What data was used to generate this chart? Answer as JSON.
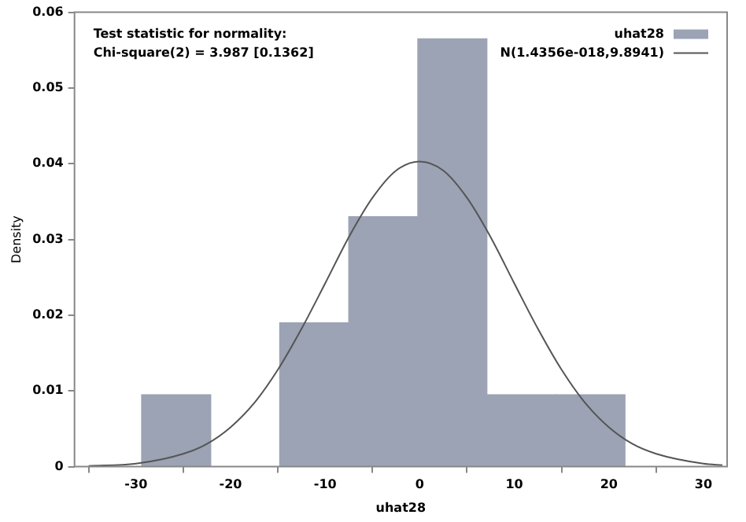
{
  "chart_data": {
    "type": "histogram",
    "xlabel": "uhat28",
    "ylabel": "Density",
    "annotations": [
      "Test statistic for normality:",
      "Chi-square(2) = 3.987 [0.1362]"
    ],
    "bins": [
      -29.4,
      -22.1,
      -14.8,
      -7.5,
      -0.2,
      7.1,
      14.4,
      21.7
    ],
    "series": [
      {
        "name": "uhat28",
        "color": "#9ba3b4",
        "values": [
          0.0095,
          0,
          0.019,
          0.033,
          0.0565,
          0.0095,
          0.0095
        ]
      },
      {
        "name": "N(1.4356e-018,9.8941)",
        "type": "line",
        "color": "#555555",
        "x": [
          -35,
          -30,
          -25,
          -22.5,
          -20,
          -17.5,
          -15,
          -12.5,
          -10,
          -7.5,
          -5,
          -2.5,
          0,
          2.5,
          5,
          7.5,
          10,
          12.5,
          15,
          17.5,
          20,
          22.5,
          25,
          30,
          32
        ],
        "values": [
          0.0001,
          0.0004,
          0.0017,
          0.003,
          0.0052,
          0.0084,
          0.0128,
          0.0182,
          0.0242,
          0.0303,
          0.0355,
          0.0391,
          0.0403,
          0.0391,
          0.0355,
          0.0303,
          0.0242,
          0.0182,
          0.0128,
          0.0084,
          0.0052,
          0.003,
          0.0017,
          0.0004,
          0.0002
        ]
      }
    ],
    "xlim": [
      -36.5,
      32.5
    ],
    "xticks": [
      -30,
      -20,
      -10,
      0,
      10,
      20,
      30
    ],
    "ylim": [
      0,
      0.06
    ],
    "yticks": [
      0,
      0.01,
      0.02,
      0.03,
      0.04,
      0.05,
      0.06
    ],
    "grid": false,
    "legend": "top right"
  }
}
